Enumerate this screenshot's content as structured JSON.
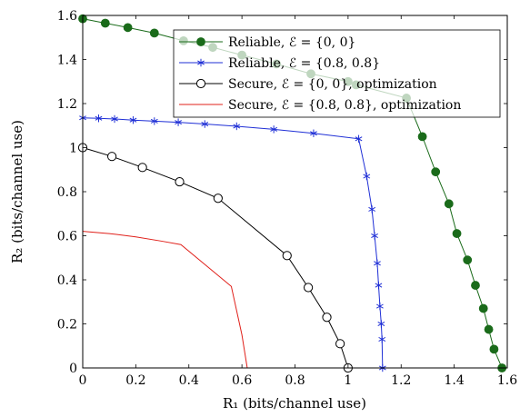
{
  "chart_data": {
    "type": "line",
    "xlabel": "R₁ (bits/channel use)",
    "ylabel": "R₂ (bits/channel use)",
    "xlim": [
      0,
      1.6
    ],
    "ylim": [
      0,
      1.6
    ],
    "xticks": [
      "0",
      "0.2",
      "0.4",
      "0.6",
      "0.8",
      "1",
      "1.2",
      "1.4",
      "1.6"
    ],
    "yticks": [
      "0",
      "0.2",
      "0.4",
      "0.6",
      "0.8",
      "1",
      "1.2",
      "1.4",
      "1.6"
    ],
    "grid": false,
    "legend_position": "top-right",
    "series": [
      {
        "name": "Reliable, ℰ = {0, 0}",
        "color": "#1a6b1a",
        "marker": "filled-circle",
        "x": [
          0,
          0.085,
          0.17,
          0.27,
          0.38,
          0.49,
          0.6,
          0.73,
          0.86,
          1.0,
          1.03,
          1.22,
          1.28,
          1.33,
          1.38,
          1.41,
          1.45,
          1.48,
          1.51,
          1.53,
          1.55,
          1.58
        ],
        "y": [
          1.585,
          1.565,
          1.545,
          1.52,
          1.485,
          1.455,
          1.42,
          1.38,
          1.335,
          1.3,
          1.285,
          1.225,
          1.05,
          0.89,
          0.745,
          0.61,
          0.49,
          0.375,
          0.27,
          0.175,
          0.085,
          0
        ]
      },
      {
        "name": "Reliable, ℰ = {0.8, 0.8}",
        "color": "#1f2fd6",
        "marker": "star",
        "x": [
          0,
          0.06,
          0.12,
          0.19,
          0.27,
          0.36,
          0.46,
          0.58,
          0.72,
          0.87,
          1.04,
          1.07,
          1.09,
          1.1,
          1.11,
          1.115,
          1.12,
          1.125,
          1.128,
          1.13
        ],
        "y": [
          1.135,
          1.133,
          1.13,
          1.125,
          1.12,
          1.115,
          1.107,
          1.097,
          1.083,
          1.065,
          1.04,
          0.87,
          0.72,
          0.6,
          0.475,
          0.375,
          0.28,
          0.2,
          0.13,
          0
        ]
      },
      {
        "name": "Secure, ℰ = {0, 0}, optimization",
        "color": "#000000",
        "marker": "open-circle",
        "x": [
          0,
          0.11,
          0.225,
          0.365,
          0.51,
          0.77,
          0.85,
          0.92,
          0.97,
          1.0
        ],
        "y": [
          1.0,
          0.96,
          0.91,
          0.845,
          0.77,
          0.51,
          0.365,
          0.23,
          0.11,
          0
        ]
      },
      {
        "name": "Secure, ℰ = {0.8, 0.8}, optimization",
        "color": "#e0201a",
        "marker": "none",
        "x": [
          0,
          0.1,
          0.2,
          0.3,
          0.37,
          0.45,
          0.56,
          0.6,
          0.62
        ],
        "y": [
          0.62,
          0.61,
          0.595,
          0.575,
          0.56,
          0.48,
          0.37,
          0.15,
          0
        ]
      }
    ]
  }
}
